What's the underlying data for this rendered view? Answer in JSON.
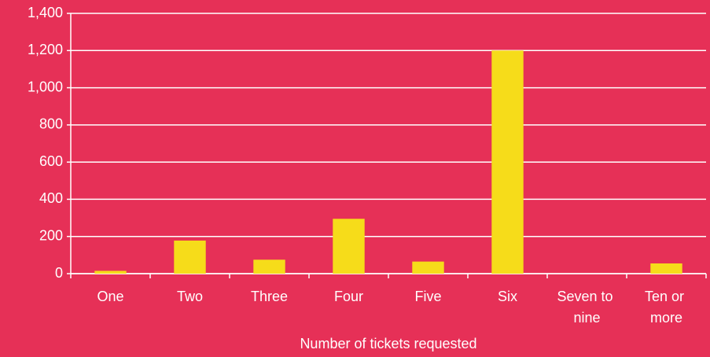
{
  "chart_data": {
    "type": "bar",
    "x_label": "Number of tickets requested",
    "categories": [
      "One",
      "Two",
      "Three",
      "Four",
      "Five",
      "Six",
      "Seven to nine",
      "Ten or more"
    ],
    "values": [
      15,
      178,
      75,
      295,
      65,
      1200,
      0,
      55
    ],
    "color": "#f6dc1a",
    "ylim": [
      0,
      1400
    ],
    "yticks": [
      0,
      200,
      400,
      600,
      800,
      {
        "value": 1000,
        "label": "1,000"
      },
      {
        "value": 1200,
        "label": "1,200"
      },
      {
        "value": 1400,
        "label": "1,400"
      }
    ],
    "grid": true
  }
}
